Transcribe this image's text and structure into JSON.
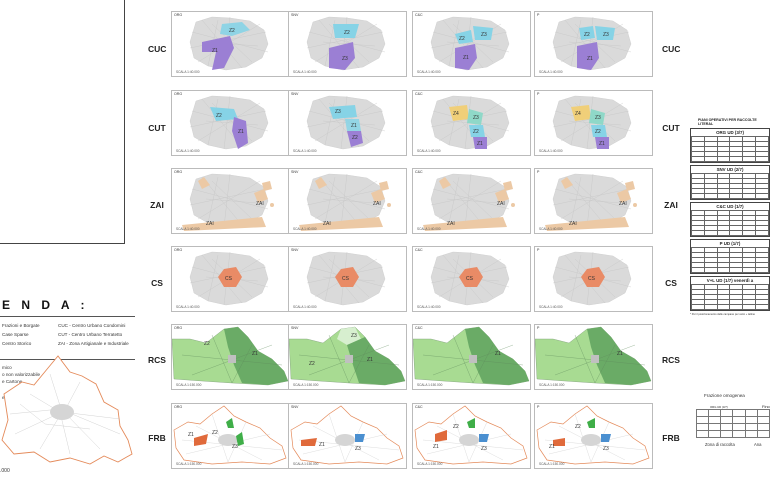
{
  "legend": {
    "title": "E N D A :",
    "left_items": [
      "Frazioni e Borgate",
      "Case Sparse",
      "Centro Storico"
    ],
    "right_items": [
      "CUC - Centro Urbano Condomini",
      "CUT - Centro Urbano Terratetto",
      "ZAI - Zona Artigianale e Industriale"
    ],
    "extra_items": [
      "mico",
      "o non valorizzabile",
      "e Cartone",
      "",
      "e Lattine"
    ],
    "municipality": "munale di Oristano",
    "scale": ".000"
  },
  "columns": [
    {
      "label": "ORG"
    },
    {
      "label": "SNV"
    },
    {
      "label": "C&C"
    },
    {
      "label": "P"
    }
  ],
  "rows": [
    {
      "label": "CUC",
      "scale": "SCALA 1:40.000"
    },
    {
      "label": "CUT",
      "scale": "SCALA 1:40.000"
    },
    {
      "label": "ZAI",
      "scale": "SCALA 1:40.000"
    },
    {
      "label": "CS",
      "scale": "SCALA 1:40.000"
    },
    {
      "label": "RCS",
      "scale": "SCALA 1:150.000"
    },
    {
      "label": "FRB",
      "scale": "SCALA 1:150.000"
    }
  ],
  "zones": {
    "cuc": {
      "z1": "Z1",
      "z2": "Z2",
      "z3": "Z3"
    },
    "cut": {
      "z1": "Z1",
      "z2": "Z2",
      "z3": "Z3",
      "z4": "Z4"
    },
    "zai": {
      "label": "ZAI"
    },
    "cs": {
      "label": "CS"
    },
    "rcs": {
      "z1": "Z1",
      "z2": "Z2",
      "z3": "Z3"
    },
    "frb": {
      "z1": "Z1",
      "z2": "Z2",
      "z3": "Z3"
    }
  },
  "colors": {
    "purple": "#9b7fd4",
    "cyan": "#86d3e6",
    "teal": "#8fd8c8",
    "yellow": "#f0cf79",
    "beige": "#ecc9a5",
    "salmon": "#e98b66",
    "green_dark": "#6aab66",
    "green_light": "#a8db92",
    "orange": "#e06a3b",
    "blue": "#4a8fd0",
    "green_frb": "#3fae48",
    "base": "#dadada"
  },
  "tables": {
    "title": "PIANI OPERATIVI PER RACCOLTE LITERAL",
    "blocks": [
      {
        "header": "ORG UD (3/7)",
        "rows": 5
      },
      {
        "header": "SNV UD (2/7)",
        "rows": 5
      },
      {
        "header": "C&C UD (1/7)",
        "rows": 5
      },
      {
        "header": "P UD (1/7)",
        "rows": 5
      },
      {
        "header": "V+L UD (1/7) venerdì a",
        "rows": 5
      }
    ],
    "note": "* Per il posizionamento delle campane per vetro + lattine"
  },
  "frazione": {
    "title": "Frazione omogenea",
    "sub": "ORG UD (3/7)",
    "side": "Fino",
    "caption_left": "Zona di raccolta",
    "caption_right": "Ana"
  }
}
